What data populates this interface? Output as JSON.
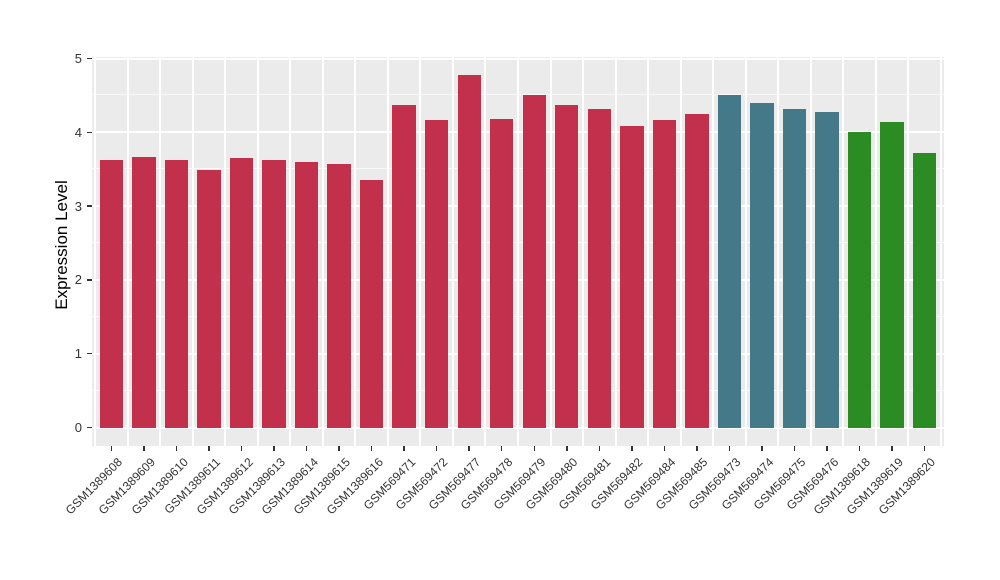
{
  "chart_data": {
    "type": "bar",
    "title": "",
    "xlabel": "",
    "ylabel": "Expression Level",
    "ylim": [
      0,
      5
    ],
    "yticks": [
      0,
      1,
      2,
      3,
      4,
      5
    ],
    "yticks_minor": [
      0.5,
      1.5,
      2.5,
      3.5,
      4.5
    ],
    "grid": "on",
    "legend_position": "none",
    "categories": [
      "GSM1389608",
      "GSM1389609",
      "GSM1389610",
      "GSM1389611",
      "GSM1389612",
      "GSM1389613",
      "GSM1389614",
      "GSM1389615",
      "GSM1389616",
      "GSM569471",
      "GSM569472",
      "GSM569477",
      "GSM569478",
      "GSM569479",
      "GSM569480",
      "GSM569481",
      "GSM569482",
      "GSM569484",
      "GSM569485",
      "GSM569473",
      "GSM569474",
      "GSM569475",
      "GSM569476",
      "GSM1389618",
      "GSM1389619",
      "GSM1389620"
    ],
    "values": [
      3.62,
      3.66,
      3.63,
      3.49,
      3.65,
      3.62,
      3.6,
      3.57,
      3.35,
      4.37,
      4.17,
      4.77,
      4.18,
      4.51,
      4.37,
      4.32,
      4.09,
      4.17,
      4.25,
      4.5,
      4.4,
      4.32,
      4.27,
      4.0,
      4.14,
      3.72
    ],
    "bar_colors": [
      "#C2304B",
      "#C2304B",
      "#C2304B",
      "#C2304B",
      "#C2304B",
      "#C2304B",
      "#C2304B",
      "#C2304B",
      "#C2304B",
      "#C2304B",
      "#C2304B",
      "#C2304B",
      "#C2304B",
      "#C2304B",
      "#C2304B",
      "#C2304B",
      "#C2304B",
      "#C2304B",
      "#C2304B",
      "#44798A",
      "#44798A",
      "#44798A",
      "#44798A",
      "#2C8C24",
      "#2C8C24",
      "#2C8C24"
    ],
    "color_groups": [
      {
        "color": "#C2304B",
        "count": 19
      },
      {
        "color": "#44798A",
        "count": 4
      },
      {
        "color": "#2C8C24",
        "count": 3
      }
    ],
    "panel_background": "#EBEBEB",
    "grid_color": "#FFFFFF",
    "tick_color": "#333333",
    "background": "#FFFFFF"
  }
}
